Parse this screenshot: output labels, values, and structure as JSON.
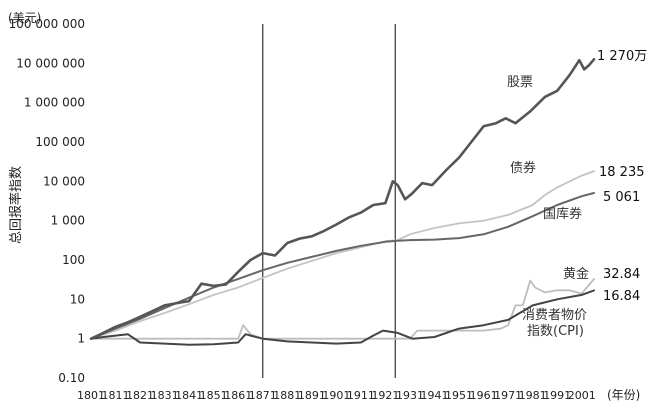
{
  "chart_data": {
    "type": "line",
    "ylabel": "总回报率指数",
    "y_unit": "(美元)",
    "x_unit": "(年份)",
    "y_scale": "log",
    "ylim": [
      0.1,
      100000000
    ],
    "xlim": [
      1801,
      2006
    ],
    "y_ticks": [
      0.1,
      1,
      10,
      100,
      1000,
      10000,
      100000,
      1000000,
      10000000,
      100000000
    ],
    "y_tick_labels": [
      "0.10",
      "1",
      "10",
      "100",
      "1 000",
      "10 000",
      "100 000",
      "1 000 000",
      "10 000 000",
      "100 000 000"
    ],
    "x_ticks": [
      1801,
      1811,
      1821,
      1831,
      1841,
      1851,
      1861,
      1871,
      1881,
      1891,
      1901,
      1911,
      1921,
      1931,
      1941,
      1951,
      1961,
      1971,
      1981,
      1991,
      2001
    ],
    "vertical_lines": [
      1871,
      1925
    ],
    "grid": false,
    "series": [
      {
        "name": "股票",
        "end_label": "1 270万",
        "color": "#555555",
        "x": [
          1801,
          1806,
          1811,
          1816,
          1821,
          1826,
          1831,
          1836,
          1841,
          1846,
          1851,
          1856,
          1861,
          1866,
          1871,
          1876,
          1881,
          1886,
          1891,
          1896,
          1901,
          1906,
          1911,
          1916,
          1921,
          1924,
          1926,
          1929,
          1932,
          1936,
          1940,
          1946,
          1951,
          1956,
          1961,
          1966,
          1970,
          1974,
          1980,
          1986,
          1991,
          1996,
          2000,
          2002,
          2004,
          2006
        ],
        "values": [
          1,
          1.4,
          2,
          2.6,
          3.6,
          5,
          7,
          8,
          9,
          25,
          22,
          24,
          50,
          100,
          150,
          130,
          270,
          350,
          400,
          550,
          800,
          1200,
          1600,
          2500,
          2800,
          10000,
          8000,
          3500,
          5000,
          9000,
          8000,
          20000,
          40000,
          100000,
          250000,
          300000,
          400000,
          300000,
          600000,
          1400000,
          2000000,
          5000000,
          12000000,
          7000000,
          9000000,
          12700000
        ]
      },
      {
        "name": "债券",
        "end_label": "18 235",
        "color": "#c4c4c4",
        "x": [
          1801,
          1811,
          1821,
          1831,
          1841,
          1851,
          1861,
          1871,
          1881,
          1891,
          1901,
          1911,
          1921,
          1926,
          1931,
          1941,
          1951,
          1961,
          1971,
          1981,
          1986,
          1991,
          2001,
          2006
        ],
        "values": [
          1,
          1.6,
          2.8,
          4.5,
          7.5,
          13,
          20,
          35,
          60,
          95,
          150,
          210,
          300,
          320,
          450,
          650,
          850,
          1000,
          1400,
          2500,
          4500,
          7000,
          14000,
          18235
        ]
      },
      {
        "name": "国库券",
        "end_label": "5 061",
        "color": "#666666",
        "x": [
          1801,
          1811,
          1821,
          1831,
          1841,
          1851,
          1861,
          1871,
          1881,
          1891,
          1901,
          1911,
          1921,
          1926,
          1931,
          1941,
          1951,
          1961,
          1971,
          1981,
          1991,
          2001,
          2006
        ],
        "values": [
          1,
          1.8,
          3.2,
          6,
          11,
          20,
          33,
          55,
          85,
          120,
          170,
          230,
          290,
          310,
          320,
          330,
          360,
          450,
          700,
          1300,
          2500,
          4200,
          5061
        ]
      },
      {
        "name": "黄金",
        "end_label": "32.84",
        "color": "#bdbdbd",
        "x": [
          1801,
          1811,
          1821,
          1831,
          1841,
          1851,
          1861,
          1863,
          1866,
          1871,
          1881,
          1891,
          1901,
          1911,
          1921,
          1931,
          1934,
          1941,
          1951,
          1961,
          1968,
          1971,
          1974,
          1977,
          1980,
          1982,
          1986,
          1991,
          1996,
          2001,
          2006
        ],
        "values": [
          1,
          1,
          1,
          1,
          1,
          1,
          1,
          2.2,
          1.3,
          1,
          1,
          1,
          1,
          1,
          1,
          1,
          1.6,
          1.6,
          1.6,
          1.6,
          1.8,
          2.2,
          7,
          7,
          30,
          20,
          15,
          17,
          17,
          14,
          32.84
        ]
      },
      {
        "name": "消费者物价指数(CPI)",
        "end_label": "16.84",
        "color": "#444444",
        "x": [
          1801,
          1806,
          1811,
          1816,
          1821,
          1831,
          1841,
          1851,
          1861,
          1864,
          1866,
          1871,
          1881,
          1891,
          1901,
          1911,
          1916,
          1920,
          1926,
          1932,
          1941,
          1951,
          1961,
          1971,
          1981,
          1991,
          2001,
          2006
        ],
        "values": [
          1,
          1.1,
          1.2,
          1.3,
          0.8,
          0.75,
          0.7,
          0.72,
          0.8,
          1.3,
          1.2,
          1,
          0.85,
          0.8,
          0.75,
          0.8,
          1.2,
          1.6,
          1.4,
          1.0,
          1.1,
          1.8,
          2.2,
          3,
          7,
          10,
          13,
          16.84
        ]
      }
    ]
  }
}
